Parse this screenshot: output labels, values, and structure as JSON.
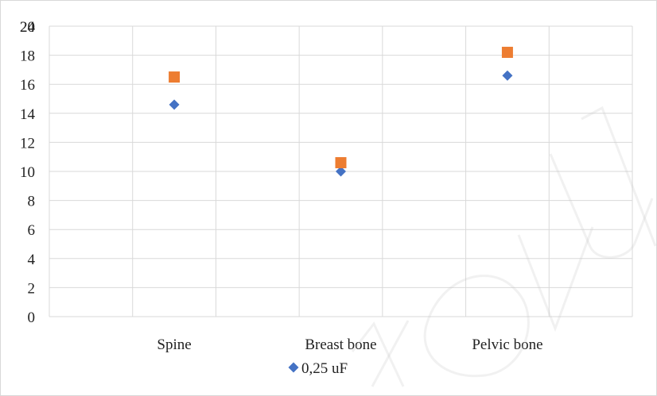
{
  "chart_data": {
    "type": "scatter",
    "categories": [
      "",
      "Spine",
      "",
      "Breast bone",
      "",
      "Pelvic bone",
      ""
    ],
    "ylim": [
      0,
      20
    ],
    "y_ticks": [
      0,
      2,
      4,
      6,
      8,
      10,
      12,
      14,
      16,
      18,
      20
    ],
    "extra_tick_label": "24",
    "grid": true,
    "legend_position": "bottom",
    "series": [
      {
        "name": "0,25 uF",
        "marker": "diamond",
        "color": "#4472C4",
        "values": [
          null,
          14.6,
          null,
          10.0,
          null,
          16.6,
          null
        ]
      },
      {
        "marker": "square",
        "color": "#ED7D31",
        "values": [
          null,
          16.5,
          null,
          10.6,
          null,
          18.2,
          null
        ]
      }
    ]
  },
  "watermark": {
    "text": "Cov Univ"
  }
}
